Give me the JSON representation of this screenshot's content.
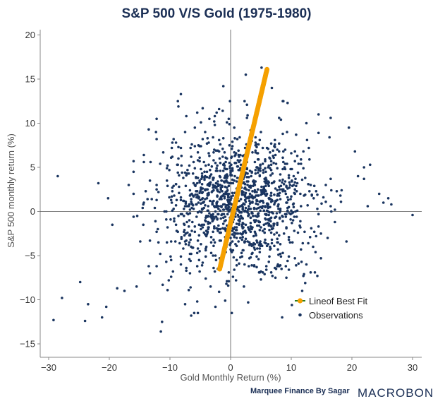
{
  "chart_data": {
    "type": "scatter",
    "title": "S&P 500 V/S Gold (1975-1980)",
    "xlabel": "Gold Monthly Return (%)",
    "ylabel": "S&P 500 monthly return (%)",
    "xlim": [
      -31,
      31
    ],
    "ylim": [
      -15.5,
      21
    ],
    "x_ticks": [
      -30,
      -20,
      -10,
      0,
      10,
      20,
      30
    ],
    "y_ticks": [
      -15,
      -10,
      -5,
      0,
      5,
      10,
      15,
      20
    ],
    "x_tick_labels": [
      "−30",
      "−20",
      "−10",
      "0",
      "10",
      "20",
      "30"
    ],
    "y_tick_labels": [
      "−15",
      "−10",
      "−5",
      "0",
      "5",
      "10",
      "15",
      "20"
    ],
    "grid": false,
    "legend_position": "lower-right",
    "series": [
      {
        "name": "Observations",
        "kind": "scatter",
        "color": "#1a3560",
        "points": [
          [
            -29.2,
            -12.3
          ],
          [
            -28.5,
            4.0
          ],
          [
            -27.8,
            -9.8
          ],
          [
            -24.8,
            -8.0
          ],
          [
            -24.0,
            -12.4
          ],
          [
            -23.5,
            -10.5
          ],
          [
            -21.8,
            3.2
          ],
          [
            -21.2,
            -12.0
          ],
          [
            -20.5,
            -10.8
          ],
          [
            -20.2,
            1.5
          ],
          [
            -19.5,
            -1.5
          ],
          [
            -18.7,
            -8.7
          ],
          [
            -17.5,
            -9.0
          ],
          [
            -16.8,
            3.0
          ],
          [
            -16.0,
            2.0
          ],
          [
            -15.5,
            -8.5
          ],
          [
            -14.5,
            0.4
          ],
          [
            -13.5,
            -6.2
          ],
          [
            -11.5,
            -13.6
          ],
          [
            -11.3,
            -12.5
          ],
          [
            -10.2,
            -7.8
          ],
          [
            -9.5,
            -6.8
          ],
          [
            -8.6,
            11.9
          ],
          [
            -8.2,
            13.3
          ],
          [
            -7.5,
            -10.5
          ],
          [
            -6.5,
            -11.8
          ],
          [
            -5.5,
            11.2
          ],
          [
            -3.5,
            10.5
          ],
          [
            -1.2,
            14.2
          ],
          [
            2.5,
            15.5
          ],
          [
            5.1,
            16.3
          ],
          [
            6.8,
            14.0
          ],
          [
            8.5,
            -12.0
          ],
          [
            11.8,
            -9.0
          ],
          [
            12.5,
            -6.0
          ],
          [
            14.5,
            11.0
          ],
          [
            16.5,
            10.6
          ],
          [
            19.5,
            9.5
          ],
          [
            20.5,
            6.8
          ],
          [
            21.0,
            4.0
          ],
          [
            22.0,
            5.0
          ],
          [
            23.0,
            5.3
          ],
          [
            24.5,
            2.0
          ],
          [
            25.2,
            1.0
          ],
          [
            26.0,
            1.5
          ],
          [
            26.5,
            0.8
          ],
          [
            30.0,
            -0.4
          ]
        ]
      },
      {
        "name": "Lineof Best Fit",
        "kind": "line",
        "color": "#f5a000",
        "line_color": "#2e7d1e",
        "fit": {
          "slope": 2.9,
          "intercept": -1.3,
          "x_range": [
            -1.8,
            6.0
          ]
        }
      }
    ]
  },
  "credit": "Marquee Finance By Sagar",
  "brand": "MACROBOND",
  "colors": {
    "title": "#1b2f55",
    "dots": "#1a3560",
    "fit": "#f5a000",
    "axis": "#666666"
  }
}
